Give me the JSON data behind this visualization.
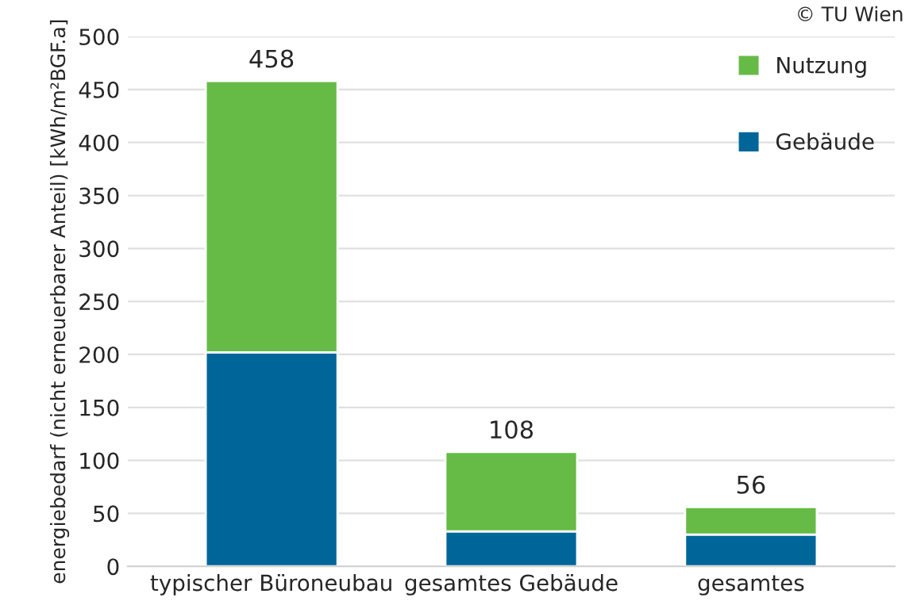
{
  "chart_data": {
    "type": "bar",
    "stacked": true,
    "ylabel": "energiebedarf (nicht erneuerbarer Anteil) [kWh/m²BGF.a]",
    "categories": [
      "typischer Büroneubau",
      "gesamtes Gebäude",
      "gesamtes"
    ],
    "series": [
      {
        "name": "Gebäude",
        "color": "#006699",
        "values": [
          202,
          33,
          30
        ]
      },
      {
        "name": "Nutzung",
        "color": "#66bb47",
        "values": [
          256,
          75,
          26
        ]
      }
    ],
    "totals": [
      "458",
      "108",
      "56"
    ],
    "ylim": [
      0,
      500
    ],
    "yticks": [
      0,
      50,
      100,
      150,
      200,
      250,
      300,
      350,
      400,
      450,
      500
    ],
    "grid": "y",
    "legend": "top right",
    "annotations": [
      "© TU Wien"
    ]
  }
}
